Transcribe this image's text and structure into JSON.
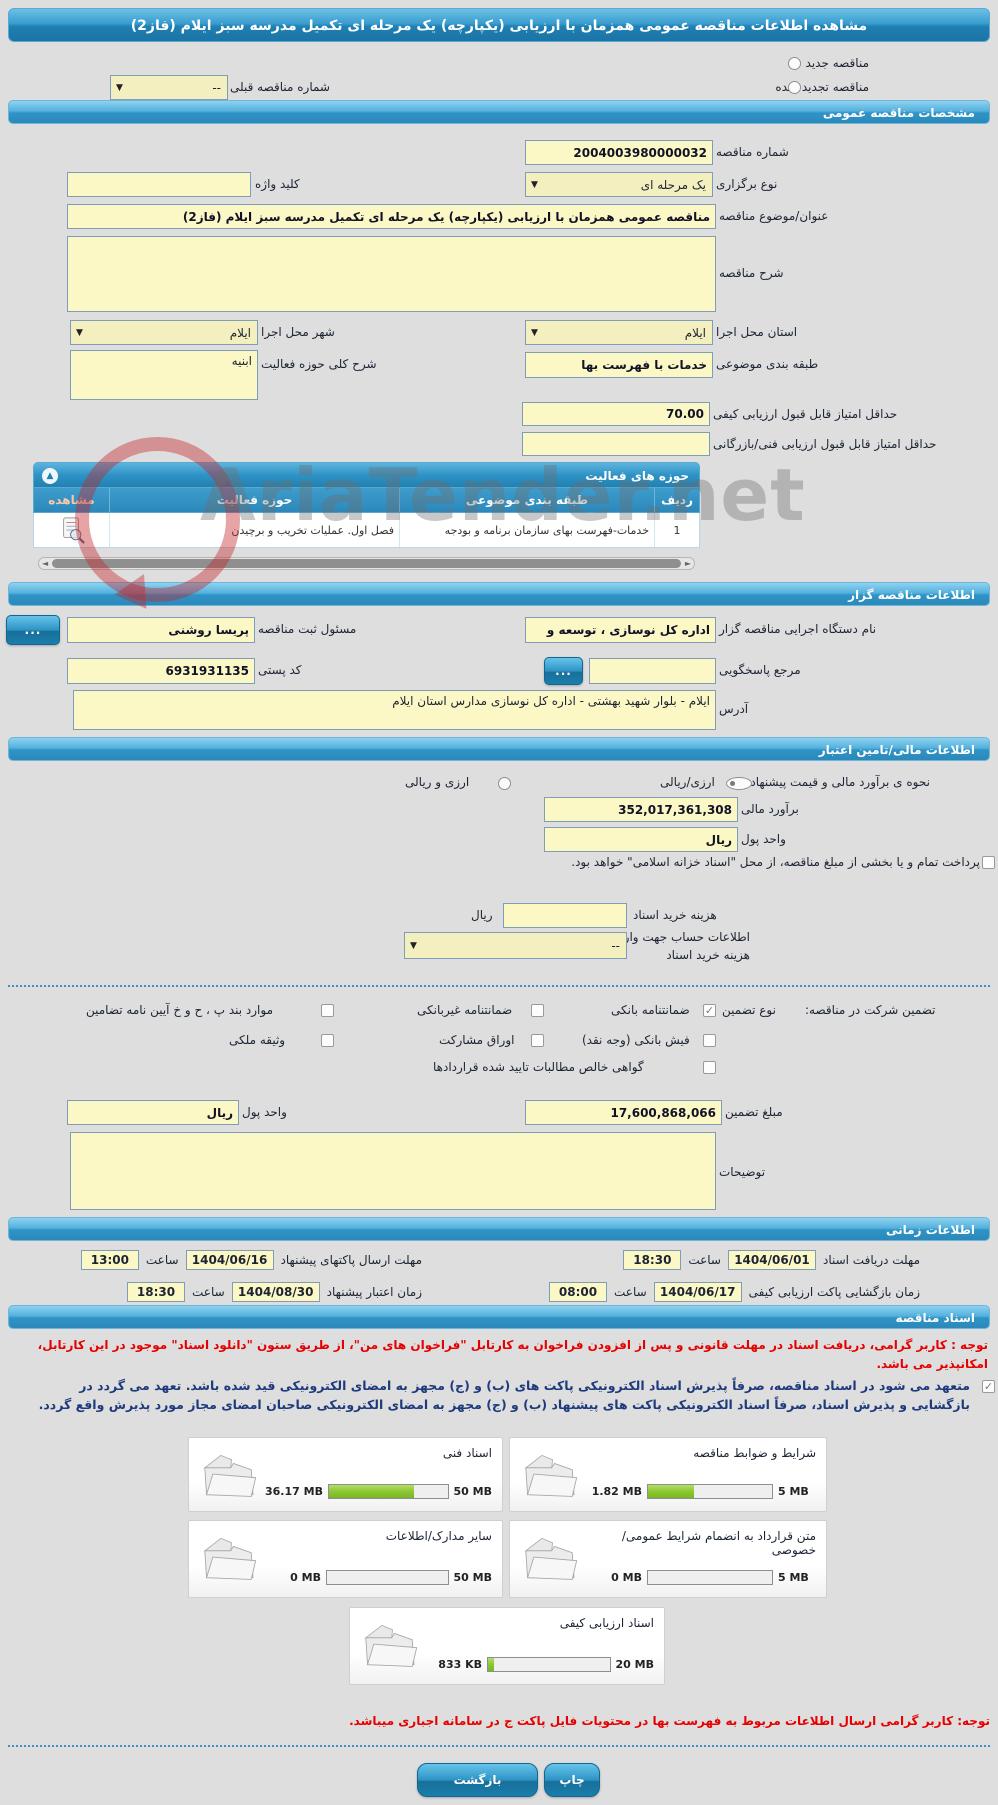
{
  "page_title": "مشاهده اطلاعات مناقصه عمومی همزمان با ارزیابی (یکپارچه) یک مرحله ای تکمیل مدرسه سبز ایلام (فاز2)",
  "renewal": {
    "new_label": "مناقصه جدید",
    "renewed_label": "مناقصه تجدید شده",
    "prev_number_label": "شماره مناقصه قبلی",
    "prev_number_value": "--"
  },
  "general": {
    "header": "مشخصات مناقصه عمومی",
    "tender_no_label": "شماره مناقصه",
    "tender_no": "2004003980000032",
    "type_label": "نوع برگزاری",
    "type_value": "یک مرحله ای",
    "keyword_label": "کلید واژه",
    "keyword_value": "",
    "subject_label": "عنوان/موضوع مناقصه",
    "subject_value": "مناقصه عمومی همزمان با ارزیابی (یکپارچه) یک مرحله ای تکمیل مدرسه سبز ایلام (فاز2)",
    "desc_label": "شرح مناقصه",
    "desc_value": "",
    "province_label": "استان محل اجرا",
    "province_value": "ایلام",
    "city_label": "شهر محل اجرا",
    "city_value": "ایلام",
    "category_label": "طبقه بندی موضوعی",
    "category_value": "خدمات با فهرست بها",
    "activity_desc_label": "شرح کلی حوزه فعالیت",
    "activity_desc_value": "ابنیه",
    "min_qual_label": "حداقل امتیاز قابل قبول ارزیابی کیفی",
    "min_qual_value": "70.00",
    "min_tech_label": "حداقل امتیاز قابل قبول ارزیابی فنی/بازرگانی",
    "min_tech_value": ""
  },
  "activity_table": {
    "header": "حوزه های فعالیت",
    "col_row": "ردیف",
    "col_category": "طبقه بندی موضوعی",
    "col_field": "حوزه فعالیت",
    "col_view": "مشاهده",
    "rows": [
      {
        "no": "1",
        "category": "خدمات-فهرست بهای سازمان برنامه و بودجه",
        "field": "فصل اول. عملیات تخریب و برچیدن"
      }
    ]
  },
  "organizer": {
    "header": "اطلاعات مناقصه گزار",
    "agency_label": "نام دستگاه اجرایی مناقصه گزار",
    "agency_value": "اداره کل نوسازی ، توسعه و",
    "registrar_label": "مسئول ثبت مناقصه",
    "registrar_value": "پریسا روشنی",
    "contact_label": "مرجع پاسخگویی",
    "contact_value": "",
    "postal_label": "کد پستی",
    "postal_value": "6931931135",
    "address_label": "آدرس",
    "address_value": "ایلام - بلوار شهید بهشتی - اداره کل نوسازی مدارس استان ایلام",
    "more_button": "..."
  },
  "financial": {
    "header": "اطلاعات مالی/تامین اعتبار",
    "method_label": "نحوه ی برآورد مالی و قیمت پیشنهادی",
    "method_option1": "ارزی/ریالی",
    "method_option2": "ارزی و ریالی",
    "estimate_label": "برآورد مالی",
    "estimate_value": "352,017,361,308",
    "currency_label": "واحد پول",
    "currency_value": "ریال",
    "treasury_note": "پرداخت تمام و یا بخشی از مبلغ مناقصه، از محل \"اسناد خزانه اسلامی\" خواهد بود.",
    "doc_fee_label": "هزینه خرید اسناد",
    "doc_fee_value": "",
    "doc_fee_unit": "ریال",
    "account_label": "اطلاعات حساب جهت واریز هزینه خرید اسناد",
    "account_value": "--"
  },
  "guarantee": {
    "title_label": "تضمین شرکت در مناقصه:",
    "type_label": "نوع تضمین",
    "opt_bank": "ضمانتنامه بانکی",
    "opt_nonbank": "ضمانتنامه غیربانکی",
    "opt_bylaw": "موارد بند پ ، ح و خ آیین نامه تضامین",
    "opt_cash": "فیش بانکی (وجه نقد)",
    "opt_bonds": "اوراق مشارکت",
    "opt_estate": "وثیقه ملکی",
    "opt_claims": "گواهی خالص مطالبات تایید شده قراردادها",
    "amount_label": "مبلغ تضمین",
    "amount_value": "17,600,868,066",
    "currency_label": "واحد پول",
    "currency_value": "ریال",
    "notes_label": "توضیحات",
    "notes_value": ""
  },
  "schedule": {
    "header": "اطلاعات زمانی",
    "items": [
      {
        "label": "مهلت دریافت اسناد",
        "date": "1404/06/01",
        "time_label": "ساعت",
        "time": "18:30"
      },
      {
        "label": "مهلت ارسال پاکتهای پیشنهاد",
        "date": "1404/06/16",
        "time_label": "ساعت",
        "time": "13:00"
      },
      {
        "label": "زمان بازگشایی پاکت ارزیابی کیفی",
        "date": "1404/06/17",
        "time_label": "ساعت",
        "time": "08:00"
      },
      {
        "label": "زمان اعتبار پیشنهاد",
        "date": "1404/08/30",
        "time_label": "ساعت",
        "time": "18:30"
      }
    ]
  },
  "documents": {
    "header": "اسناد مناقصه",
    "notice_red": "توجه : کاربر گرامی، دریافت اسناد در مهلت قانونی و پس از افزودن فراخوان به کارتابل \"فراخوان های من\"، از طریق ستون \"دانلود اسناد\" موجود در این کارتابل، امکانپذیر می باشد.",
    "commitment": "متعهد می شود در اسناد مناقصه، صرفاً پذیرش اسناد الکترونیکی پاکت های (ب) و (ج) مجهز به امضای الکترونیکی قید شده باشد. تعهد می گردد در بازگشایی و پذیرش اسناد، صرفاً اسناد الکترونیکی پاکت های پیشنهاد (ب) و (ج) مجهز به امضای الکترونیکی صاحبان امضای مجاز مورد پذیرش واقع گردد.",
    "boxes": [
      {
        "title": "شرایط و ضوابط مناقصه",
        "used": "1.82 MB",
        "max": "5 MB",
        "pct": 37
      },
      {
        "title": "اسناد فنی",
        "used": "36.17 MB",
        "max": "50 MB",
        "pct": 72
      },
      {
        "title": "متن قرارداد به انضمام شرایط عمومی/خصوصی",
        "used": "0 MB",
        "max": "5 MB",
        "pct": 0
      },
      {
        "title": "سایر مدارک/اطلاعات",
        "used": "0 MB",
        "max": "50 MB",
        "pct": 0
      },
      {
        "title": "اسناد ارزیابی کیفی",
        "used": "833 KB",
        "max": "20 MB",
        "pct": 5
      }
    ],
    "footer_red": "توجه: کاربر گرامی ارسال اطلاعات مربوط به فهرست بها در محتویات فایل پاکت ج در سامانه اجباری میباشد."
  },
  "actions": {
    "print": "چاپ",
    "back": "بازگشت"
  },
  "watermark": "AriaTender.net"
}
